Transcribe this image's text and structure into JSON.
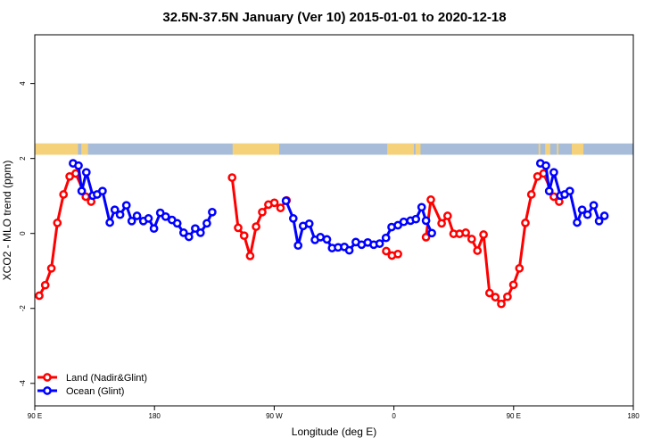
{
  "chart_data": {
    "type": "line",
    "title": "32.5N-37.5N January (Ver 10)   2015-01-01 to 2020-12-18",
    "xlabel": "Longitude (deg E)",
    "ylabel": "XCO2 - MLO trend (ppm)",
    "xlim": [
      90,
      450
    ],
    "ylim": [
      -4.6,
      5.3
    ],
    "x_ticks": [
      {
        "value": 90,
        "label": "90 E"
      },
      {
        "value": 162,
        "label": "180"
      },
      {
        "value": 234,
        "label": "90 W"
      },
      {
        "value": 306,
        "label": "0"
      },
      {
        "value": 378,
        "label": "90 E"
      },
      {
        "value": 450,
        "label": "180"
      }
    ],
    "y_ticks": [
      {
        "value": -4,
        "label": "-4"
      },
      {
        "value": -2,
        "label": "-2"
      },
      {
        "value": 0,
        "label": "0"
      },
      {
        "value": 2,
        "label": "2"
      },
      {
        "value": 4,
        "label": "4"
      }
    ],
    "grid": false,
    "legend_position": "bottom-left",
    "surface_band": {
      "y_range": [
        2.1,
        2.4
      ],
      "land_color": "#f5d27a",
      "ocean_color": "#a6bcd8",
      "land_segments": [
        [
          90,
          116
        ],
        [
          118,
          122
        ],
        [
          209,
          237
        ],
        [
          302,
          318
        ],
        [
          319,
          322
        ],
        [
          393,
          394
        ],
        [
          397,
          400
        ],
        [
          404,
          405
        ],
        [
          413,
          420
        ]
      ]
    },
    "series": [
      {
        "name": "Land (Nadir&Glint)",
        "color": "#ff0000",
        "points": [
          [
            92.7,
            -1.66
          ],
          [
            96.3,
            -1.38
          ],
          [
            100,
            -0.93
          ],
          [
            103.6,
            0.28
          ],
          [
            107.3,
            1.04
          ],
          [
            111,
            1.52
          ],
          [
            114.6,
            1.6
          ],
          [
            120.7,
            0.98
          ],
          [
            123.9,
            0.85
          ],
          [
            208.7,
            1.49
          ],
          [
            212.3,
            0.15
          ],
          [
            215.9,
            -0.06
          ],
          [
            219.5,
            -0.6
          ],
          [
            223.1,
            0.18
          ],
          [
            226.8,
            0.57
          ],
          [
            230.5,
            0.77
          ],
          [
            234.1,
            0.82
          ],
          [
            237.8,
            0.68
          ],
          [
            241.4,
            0.88
          ],
          [
            301.4,
            -0.47
          ],
          [
            304.8,
            -0.59
          ],
          [
            308.4,
            -0.55
          ],
          [
            325.3,
            -0.1
          ],
          [
            328.2,
            0.9
          ],
          [
            334.7,
            0.27
          ],
          [
            338.3,
            0.47
          ],
          [
            341.9,
            -0.01
          ],
          [
            345.5,
            -0.01
          ],
          [
            349.2,
            0.02
          ],
          [
            352.8,
            -0.15
          ],
          [
            356.2,
            -0.46
          ],
          [
            359.9,
            -0.03
          ],
          [
            363.5,
            -1.59
          ],
          [
            367,
            -1.7
          ],
          [
            370.6,
            -1.88
          ],
          [
            374.3,
            -1.69
          ],
          [
            377.9,
            -1.37
          ],
          [
            381.5,
            -0.93
          ],
          [
            385.1,
            0.28
          ],
          [
            388.7,
            1.04
          ],
          [
            392.4,
            1.52
          ],
          [
            396,
            1.6
          ],
          [
            402.2,
            0.98
          ],
          [
            405.4,
            0.85
          ]
        ]
      },
      {
        "name": "Ocean (Glint)",
        "color": "#0000ff",
        "points": [
          [
            113,
            1.87
          ],
          [
            116.3,
            1.81
          ],
          [
            118.2,
            1.13
          ],
          [
            121,
            1.63
          ],
          [
            124.9,
            1.01
          ],
          [
            127.5,
            1.04
          ],
          [
            130.7,
            1.13
          ],
          [
            135.1,
            0.29
          ],
          [
            138.1,
            0.63
          ],
          [
            141.3,
            0.5
          ],
          [
            145.1,
            0.75
          ],
          [
            148.3,
            0.33
          ],
          [
            151.5,
            0.47
          ],
          [
            155.3,
            0.33
          ],
          [
            158.4,
            0.4
          ],
          [
            161.7,
            0.13
          ],
          [
            165.5,
            0.55
          ],
          [
            168.7,
            0.45
          ],
          [
            172.5,
            0.36
          ],
          [
            175.7,
            0.27
          ],
          [
            179.5,
            0.02
          ],
          [
            182.7,
            -0.09
          ],
          [
            186.5,
            0.13
          ],
          [
            189.7,
            0.02
          ],
          [
            193.5,
            0.27
          ],
          [
            196.7,
            0.57
          ],
          [
            241.1,
            0.87
          ],
          [
            245.5,
            0.4
          ],
          [
            248.4,
            -0.32
          ],
          [
            251.4,
            0.2
          ],
          [
            255.1,
            0.26
          ],
          [
            258.5,
            -0.17
          ],
          [
            261.8,
            -0.1
          ],
          [
            265.7,
            -0.16
          ],
          [
            268.8,
            -0.39
          ],
          [
            272.4,
            -0.37
          ],
          [
            276.2,
            -0.36
          ],
          [
            279.2,
            -0.45
          ],
          [
            283.1,
            -0.23
          ],
          [
            286.6,
            -0.3
          ],
          [
            290.3,
            -0.24
          ],
          [
            293.9,
            -0.3
          ],
          [
            297.4,
            -0.27
          ],
          [
            301.2,
            -0.12
          ],
          [
            304.6,
            0.17
          ],
          [
            308.4,
            0.22
          ],
          [
            311.9,
            0.31
          ],
          [
            316,
            0.34
          ],
          [
            319.2,
            0.38
          ],
          [
            322.7,
            0.7
          ],
          [
            325.3,
            0.34
          ],
          [
            328.8,
            0.01
          ],
          [
            394.1,
            1.87
          ],
          [
            397.4,
            1.81
          ],
          [
            399.4,
            1.13
          ],
          [
            402.2,
            1.63
          ],
          [
            406.1,
            1.01
          ],
          [
            408.7,
            1.04
          ],
          [
            411.8,
            1.13
          ],
          [
            416.2,
            0.29
          ],
          [
            419.2,
            0.63
          ],
          [
            422.4,
            0.5
          ],
          [
            426.2,
            0.75
          ],
          [
            429.4,
            0.33
          ],
          [
            432.6,
            0.47
          ]
        ]
      }
    ]
  }
}
